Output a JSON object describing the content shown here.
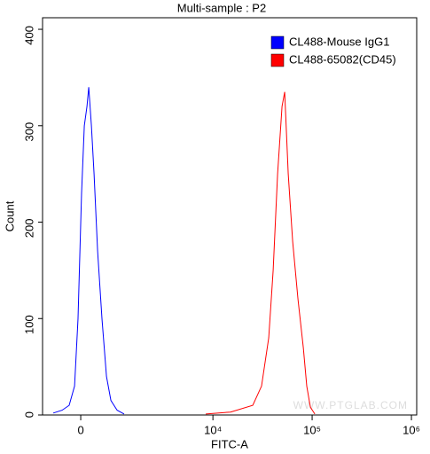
{
  "chart_data": {
    "type": "line",
    "title": "Multi-sample : P2",
    "x_label": "FITC-A",
    "y_label": "Count",
    "annotation": "WWW.PTGLAB.COM",
    "xscale": "biexponential",
    "legend": "upper right",
    "xlim": [
      -940,
      1130000
    ],
    "ylim": [
      0,
      412
    ],
    "xticks": [
      0,
      {
        "value": 10000,
        "label": "10⁴"
      },
      {
        "value": 100000,
        "label": "10⁵"
      },
      {
        "value": 1000000,
        "label": "10⁶"
      }
    ],
    "yticks": [
      0,
      100,
      200,
      300,
      400
    ],
    "series": [
      {
        "name": "CL488-Mouse IgG1",
        "color": "#0000ff",
        "x": [
          -637,
          -416,
          -253,
          -135,
          -58,
          19,
          77,
          135,
          174,
          233,
          293,
          375,
          480,
          591,
          708,
          885,
          1109
        ],
        "values": [
          2,
          5,
          10,
          30,
          100,
          230,
          300,
          320,
          340,
          300,
          250,
          170,
          100,
          40,
          15,
          5,
          1
        ]
      },
      {
        "name": "CL488-65082(CD45)",
        "color": "#ff0000",
        "x": [
          8471,
          15050,
          25230,
          30950,
          36560,
          40490,
          44880,
          49740,
          52920,
          57410,
          63670,
          72000,
          81440,
          88360,
          96020,
          106400
        ],
        "values": [
          1,
          3,
          10,
          30,
          80,
          150,
          250,
          320,
          335,
          250,
          180,
          120,
          70,
          30,
          8,
          1
        ]
      }
    ]
  }
}
